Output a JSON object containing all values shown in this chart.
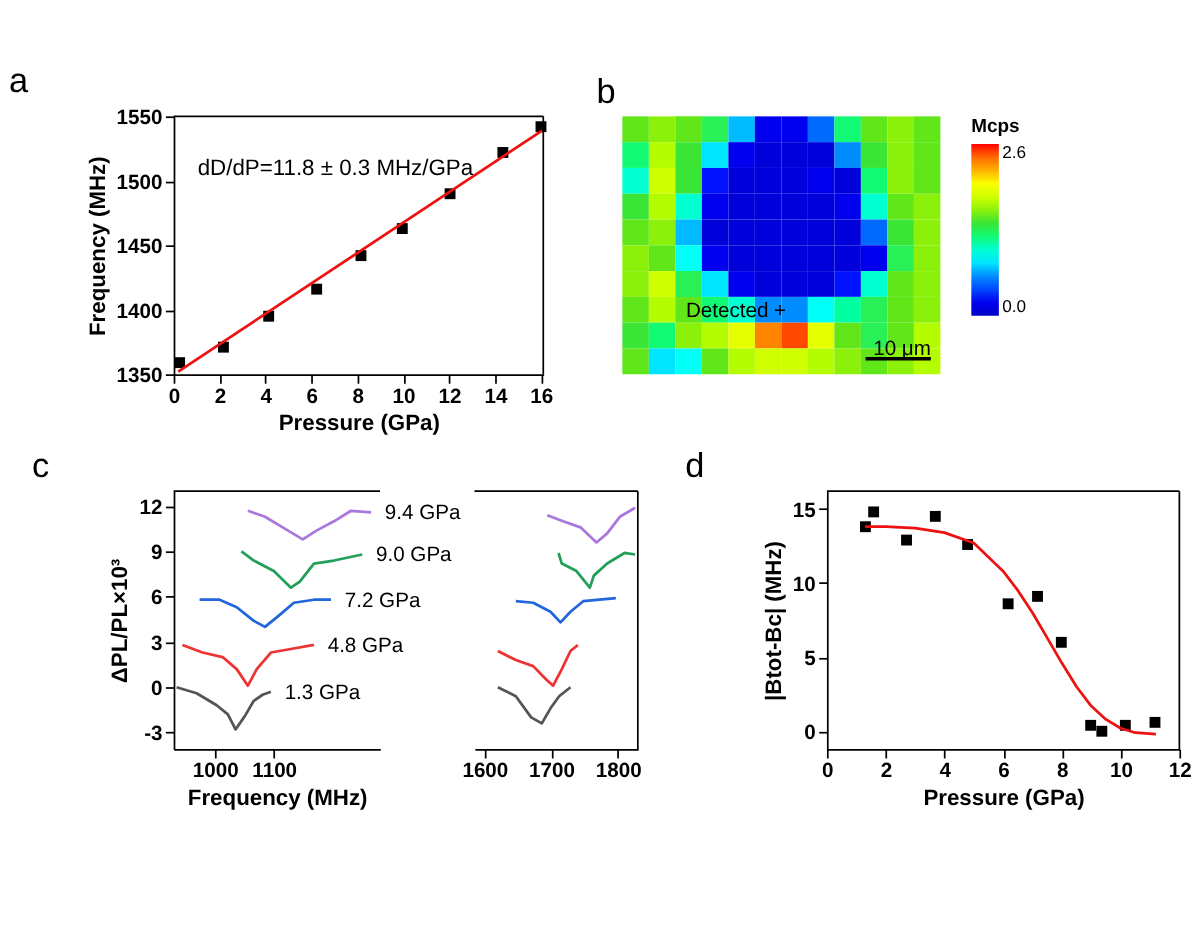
{
  "chart_data": [
    {
      "type": "scatter",
      "title": "a",
      "xlabel": "Pressure (GPa)",
      "ylabel": "Frequency (MHz)",
      "xlim": [
        0,
        16.1
      ],
      "ylim": [
        1350,
        1550
      ],
      "xticks": [
        0,
        2,
        4,
        6,
        8,
        10,
        12,
        14,
        16
      ],
      "yticks": [
        1350,
        1400,
        1450,
        1500,
        1550
      ],
      "grid": false,
      "annotations": [
        "dD/dP=11.8 ± 0.3 MHz/GPa"
      ],
      "series": [
        {
          "type": "scatter",
          "marker": "square",
          "color": "#000000",
          "x": [
            0.26,
            2.17,
            4.14,
            6.23,
            8.16,
            9.96,
            12.04,
            14.34,
            16.0
          ],
          "values": [
            1359,
            1371,
            1395,
            1416,
            1442,
            1463,
            1490,
            1522,
            1542
          ]
        },
        {
          "type": "line",
          "marker": "none",
          "color": "#ee1111",
          "x": [
            0.2,
            16.05
          ],
          "values": [
            1352,
            1539
          ]
        }
      ]
    },
    {
      "type": "heatmap",
      "title": "b",
      "clabel": "Mcps",
      "clim": [
        0,
        2.6
      ],
      "cticks": [
        {
          "value": 0,
          "label": "0.0"
        },
        {
          "value": 2.6,
          "label": "2.6"
        }
      ],
      "annotations": [
        "Detected +",
        "10 μm"
      ],
      "categories": [
        null,
        null,
        null,
        null,
        null,
        null,
        null,
        null,
        null,
        null,
        null,
        null
      ],
      "y_categories": [
        null,
        null,
        null,
        null,
        null,
        null,
        null,
        null,
        null,
        null
      ],
      "cells": [
        [
          1.5,
          1.6,
          1.5,
          1.3,
          0.7,
          0.2,
          0.2,
          0.5,
          1.2,
          1.5,
          1.6,
          1.5
        ],
        [
          1.2,
          1.7,
          1.4,
          0.8,
          0.2,
          0.1,
          0.1,
          0.1,
          0.6,
          1.4,
          1.6,
          1.5
        ],
        [
          1.0,
          1.8,
          1.4,
          0.3,
          0.1,
          0.1,
          0.1,
          0.2,
          0.1,
          1.2,
          1.6,
          1.5
        ],
        [
          1.4,
          1.7,
          1.0,
          0.2,
          0.1,
          0.1,
          0.1,
          0.1,
          0.2,
          1.0,
          1.5,
          1.6
        ],
        [
          1.5,
          1.6,
          0.7,
          0.1,
          0.1,
          0.1,
          0.1,
          0.1,
          0.1,
          0.5,
          1.4,
          1.6
        ],
        [
          1.6,
          1.5,
          0.9,
          0.2,
          0.1,
          0.1,
          0.1,
          0.1,
          0.1,
          0.2,
          1.3,
          1.6
        ],
        [
          1.6,
          1.8,
          1.3,
          0.8,
          0.2,
          0.1,
          0.1,
          0.1,
          0.3,
          1.0,
          1.5,
          1.6
        ],
        [
          1.5,
          1.7,
          1.5,
          1.2,
          1.0,
          0.6,
          0.6,
          0.9,
          1.1,
          1.3,
          1.5,
          1.6
        ],
        [
          1.4,
          1.2,
          1.6,
          1.7,
          1.9,
          2.3,
          2.5,
          1.9,
          1.5,
          1.3,
          1.5,
          1.7
        ],
        [
          1.5,
          0.8,
          0.9,
          1.5,
          1.7,
          1.8,
          1.8,
          1.7,
          1.6,
          1.5,
          1.6,
          1.7
        ]
      ]
    },
    {
      "type": "line",
      "title": "c",
      "xlabel": "Frequency (MHz)",
      "ylabel": "ΔPL/PL×10³",
      "xlim": [
        930,
        1280
      ],
      "ylim": [
        -4.1,
        13
      ],
      "xticks": [
        1000,
        1100
      ],
      "yticks": [
        -3,
        0,
        3,
        6,
        9,
        12
      ],
      "grid": false,
      "line_style": "solid",
      "series": [
        {
          "name": "1.3 GPa",
          "color": "#555555",
          "x": [
            935,
            969,
            1003,
            1022,
            1035,
            1051,
            1066,
            1081,
            1095
          ],
          "values": [
            0,
            -0.4,
            -1.2,
            -1.8,
            -2.8,
            -1.9,
            -0.9,
            -0.5,
            -0.3
          ]
        },
        {
          "name": "4.8 GPa",
          "color": "#ee3333",
          "x": [
            945,
            979,
            1013,
            1037,
            1056,
            1071,
            1095,
            1124,
            1168
          ],
          "values": [
            2.8,
            2.3,
            2.0,
            1.2,
            0.1,
            1.2,
            2.3,
            2.5,
            2.8
          ]
        },
        {
          "name": "7.2 GPa",
          "color": "#2266dd",
          "x": [
            974,
            1008,
            1037,
            1066,
            1085,
            1110,
            1134,
            1168,
            1197
          ],
          "values": [
            5.8,
            5.8,
            5.3,
            4.4,
            4.0,
            4.8,
            5.6,
            5.8,
            5.8
          ]
        },
        {
          "name": "9.0 GPa",
          "color": "#22a05a",
          "x": [
            1045,
            1066,
            1100,
            1129,
            1144,
            1168,
            1202,
            1250
          ],
          "values": [
            9.0,
            8.4,
            7.7,
            6.6,
            7.0,
            8.2,
            8.4,
            8.8
          ]
        },
        {
          "name": "9.4 GPa",
          "color": "#aa77dd",
          "x": [
            1056,
            1085,
            1115,
            1149,
            1173,
            1202,
            1231,
            1265
          ],
          "values": [
            11.7,
            11.3,
            10.6,
            9.8,
            10.4,
            11.0,
            11.7,
            11.6
          ]
        }
      ]
    },
    {
      "type": "line",
      "xlim": [
        1585,
        1830
      ],
      "ylim": [
        -4.1,
        13
      ],
      "xticks": [
        1600,
        1700,
        1800
      ],
      "tick_labels": "x",
      "grid": false,
      "line_style": "solid",
      "series": [
        {
          "color": "#555555",
          "x": [
            1620,
            1647,
            1670,
            1686,
            1699,
            1712,
            1729
          ],
          "values": [
            0,
            -0.6,
            -2.0,
            -2.4,
            -1.4,
            -0.6,
            0
          ]
        },
        {
          "color": "#ee3333",
          "x": [
            1620,
            1647,
            1673,
            1693,
            1703,
            1716,
            1729,
            1740
          ],
          "values": [
            2.4,
            1.8,
            1.4,
            0.5,
            0.1,
            1.2,
            2.4,
            2.8
          ]
        },
        {
          "color": "#2266dd",
          "x": [
            1647,
            1673,
            1699,
            1714,
            1729,
            1748,
            1797
          ],
          "values": [
            5.7,
            5.6,
            5.0,
            4.3,
            5.0,
            5.7,
            5.9
          ]
        },
        {
          "color": "#22a05a",
          "x": [
            1711,
            1716,
            1738,
            1758,
            1764,
            1784,
            1810,
            1826
          ],
          "values": [
            8.9,
            8.2,
            7.7,
            6.6,
            7.4,
            8.2,
            8.9,
            8.8
          ]
        },
        {
          "color": "#aa77dd",
          "x": [
            1694,
            1718,
            1744,
            1768,
            1784,
            1803,
            1826
          ],
          "values": [
            11.4,
            11.0,
            10.6,
            9.6,
            10.2,
            11.3,
            11.9
          ]
        }
      ]
    },
    {
      "type": "scatter",
      "title": "d",
      "xlabel": "Pressure (GPa)",
      "ylabel": "|Btot-Bc| (MHz)",
      "xlim": [
        0,
        12
      ],
      "ylim": [
        -1.2,
        16.2
      ],
      "xticks": [
        0,
        2,
        4,
        6,
        8,
        10,
        12
      ],
      "yticks": [
        0,
        5,
        10,
        15
      ],
      "grid": false,
      "series": [
        {
          "type": "scatter",
          "marker": "square",
          "color": "#000000",
          "x": [
            1.31,
            1.59,
            2.71,
            3.69,
            4.79,
            6.17,
            7.17,
            7.98,
            8.98,
            9.36,
            10.16,
            11.17
          ],
          "values": [
            13.8,
            14.8,
            12.9,
            14.5,
            12.6,
            8.6,
            9.1,
            6.0,
            0.4,
            0.0,
            0.4,
            0.6
          ]
        },
        {
          "type": "line",
          "marker": "none",
          "color": "#ee1111",
          "x": [
            1.3,
            2,
            3,
            4,
            5,
            6,
            6.5,
            7,
            7.5,
            8,
            8.5,
            9,
            9.5,
            10,
            10.5,
            11.2
          ],
          "values": [
            13.8,
            13.8,
            13.7,
            13.4,
            12.7,
            10.8,
            9.5,
            8.0,
            6.3,
            4.6,
            3.0,
            1.7,
            0.8,
            0.2,
            -0.1,
            -0.2
          ]
        }
      ]
    }
  ]
}
